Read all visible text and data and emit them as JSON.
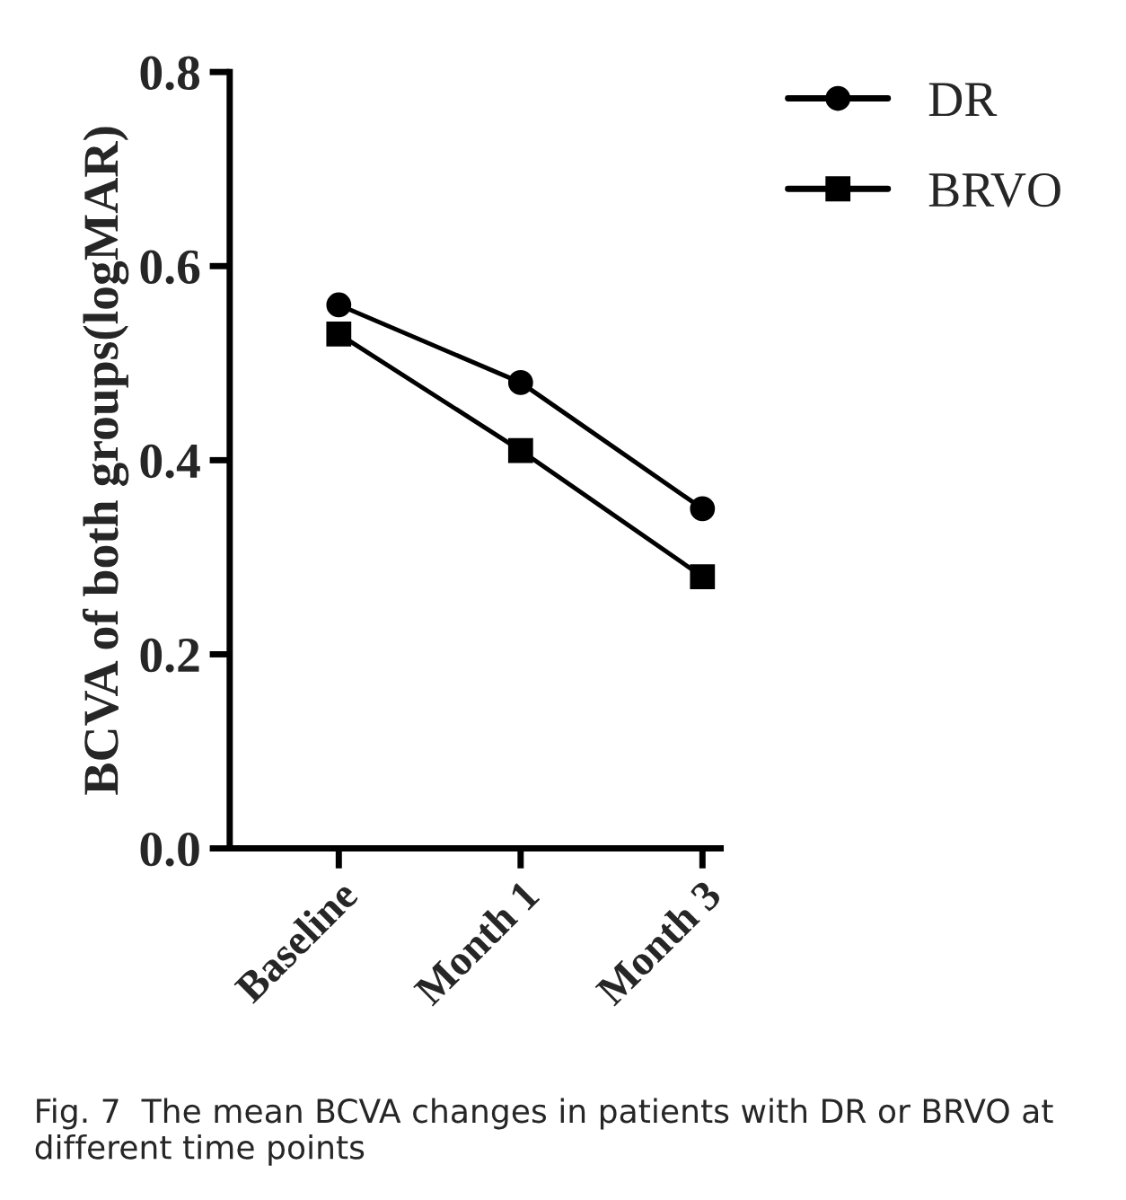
{
  "chart_data": {
    "type": "line",
    "ylabel": "BCVA of both groups(logMAR)",
    "categories": [
      "Baseline",
      "Month 1",
      "Month 3"
    ],
    "series": [
      {
        "name": "DR",
        "color": "#000000",
        "marker": "circle",
        "values": [
          0.56,
          0.48,
          0.35
        ]
      },
      {
        "name": "BRVO",
        "color": "#000000",
        "marker": "square",
        "values": [
          0.53,
          0.41,
          0.28
        ]
      }
    ],
    "ylim": [
      0,
      0.8
    ],
    "yticks": [
      {
        "value": 0,
        "label": "0.0"
      },
      0.2,
      0.4,
      0.6,
      0.8
    ],
    "grid": false,
    "legend": "top right",
    "line_style": "solid",
    "annotations": [
      "Fig. 7  The mean BCVA changes in patients with DR or BRVO at different time points"
    ]
  }
}
